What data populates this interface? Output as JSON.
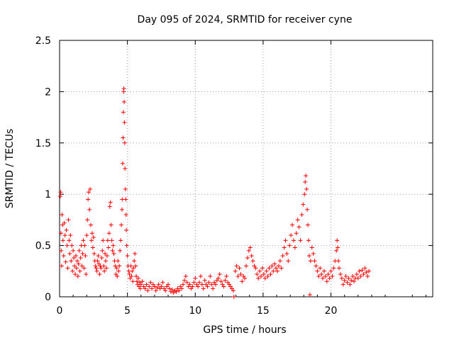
{
  "chart_data": {
    "type": "scatter",
    "title": "Day 095 of 2024, SRMTID for receiver cyne",
    "xlabel": "GPS time / hours",
    "ylabel": "SRMTID / TECUs",
    "xlim": [
      0,
      27.5
    ],
    "ylim": [
      0,
      2.5
    ],
    "xticks": [
      0,
      5,
      10,
      15,
      20
    ],
    "xtick_labels": [
      "0",
      "5",
      "10",
      "15",
      "20"
    ],
    "yticks": [
      0,
      0.5,
      1,
      1.5,
      2,
      2.5
    ],
    "ytick_labels": [
      "0",
      "0.5",
      "1",
      "1.5",
      "2",
      "2.5"
    ],
    "grid": true,
    "marker": "+",
    "series": [
      {
        "name": "SRMTID",
        "color": "#ff0000",
        "points": [
          [
            0.05,
            0.98
          ],
          [
            0.08,
            1.02
          ],
          [
            0.1,
            0.62
          ],
          [
            0.12,
            0.45
          ],
          [
            0.15,
            0.3
          ],
          [
            0.18,
            0.8
          ],
          [
            0.22,
            0.7
          ],
          [
            0.25,
            0.55
          ],
          [
            0.3,
            0.4
          ],
          [
            0.35,
            0.72
          ],
          [
            0.4,
            0.6
          ],
          [
            0.45,
            0.34
          ],
          [
            0.5,
            0.65
          ],
          [
            0.55,
            0.5
          ],
          [
            0.6,
            0.28
          ],
          [
            0.65,
            0.75
          ],
          [
            0.7,
            0.55
          ],
          [
            0.75,
            0.42
          ],
          [
            0.8,
            0.6
          ],
          [
            0.85,
            0.35
          ],
          [
            0.9,
            0.5
          ],
          [
            0.95,
            0.25
          ],
          [
            1.0,
            0.45
          ],
          [
            1.05,
            0.38
          ],
          [
            1.1,
            0.3
          ],
          [
            1.15,
            0.22
          ],
          [
            1.2,
            0.4
          ],
          [
            1.25,
            0.28
          ],
          [
            1.3,
            0.35
          ],
          [
            1.35,
            0.2
          ],
          [
            1.4,
            0.32
          ],
          [
            1.45,
            0.45
          ],
          [
            1.5,
            0.25
          ],
          [
            1.55,
            0.38
          ],
          [
            1.6,
            0.5
          ],
          [
            1.65,
            0.3
          ],
          [
            1.7,
            0.42
          ],
          [
            1.75,
            0.55
          ],
          [
            1.8,
            0.28
          ],
          [
            1.85,
            0.5
          ],
          [
            1.9,
            0.4
          ],
          [
            1.95,
            0.22
          ],
          [
            2.0,
            0.6
          ],
          [
            2.05,
            0.75
          ],
          [
            2.1,
            0.95
          ],
          [
            2.15,
            1.02
          ],
          [
            2.2,
            0.85
          ],
          [
            2.25,
            1.05
          ],
          [
            2.3,
            0.7
          ],
          [
            2.35,
            0.55
          ],
          [
            2.4,
            0.62
          ],
          [
            2.45,
            0.48
          ],
          [
            2.5,
            0.58
          ],
          [
            2.55,
            0.42
          ],
          [
            2.6,
            0.35
          ],
          [
            2.65,
            0.3
          ],
          [
            2.7,
            0.28
          ],
          [
            2.75,
            0.25
          ],
          [
            2.8,
            0.35
          ],
          [
            2.85,
            0.4
          ],
          [
            2.9,
            0.32
          ],
          [
            2.95,
            0.22
          ],
          [
            3.0,
            0.3
          ],
          [
            3.05,
            0.28
          ],
          [
            3.1,
            0.38
          ],
          [
            3.15,
            0.45
          ],
          [
            3.2,
            0.55
          ],
          [
            3.25,
            0.3
          ],
          [
            3.3,
            0.25
          ],
          [
            3.35,
            0.42
          ],
          [
            3.4,
            0.35
          ],
          [
            3.45,
            0.28
          ],
          [
            3.5,
            0.4
          ],
          [
            3.55,
            0.55
          ],
          [
            3.6,
            0.48
          ],
          [
            3.65,
            0.62
          ],
          [
            3.7,
            0.88
          ],
          [
            3.75,
            0.92
          ],
          [
            3.8,
            0.7
          ],
          [
            3.85,
            0.55
          ],
          [
            3.9,
            0.45
          ],
          [
            3.95,
            0.5
          ],
          [
            4.0,
            0.42
          ],
          [
            4.05,
            0.35
          ],
          [
            4.1,
            0.3
          ],
          [
            4.15,
            0.22
          ],
          [
            4.2,
            0.28
          ],
          [
            4.25,
            0.2
          ],
          [
            4.3,
            0.35
          ],
          [
            4.35,
            0.25
          ],
          [
            4.4,
            0.3
          ],
          [
            4.45,
            0.45
          ],
          [
            4.5,
            0.55
          ],
          [
            4.55,
            0.7
          ],
          [
            4.6,
            0.85
          ],
          [
            4.62,
            0.95
          ],
          [
            4.65,
            1.3
          ],
          [
            4.68,
            1.55
          ],
          [
            4.7,
            1.8
          ],
          [
            4.72,
            2.0
          ],
          [
            4.74,
            2.03
          ],
          [
            4.76,
            1.9
          ],
          [
            4.78,
            1.7
          ],
          [
            4.8,
            1.5
          ],
          [
            4.82,
            1.25
          ],
          [
            4.85,
            1.05
          ],
          [
            4.88,
            0.95
          ],
          [
            4.9,
            0.8
          ],
          [
            4.92,
            0.65
          ],
          [
            4.95,
            0.5
          ],
          [
            5.0,
            0.4
          ],
          [
            5.05,
            0.3
          ],
          [
            5.1,
            0.25
          ],
          [
            5.15,
            0.22
          ],
          [
            5.2,
            0.18
          ],
          [
            5.25,
            0.3
          ],
          [
            5.3,
            0.2
          ],
          [
            5.35,
            0.25
          ],
          [
            5.4,
            0.15
          ],
          [
            5.45,
            0.28
          ],
          [
            5.5,
            0.35
          ],
          [
            5.55,
            0.42
          ],
          [
            5.6,
            0.3
          ],
          [
            5.65,
            0.2
          ],
          [
            5.7,
            0.15
          ],
          [
            5.75,
            0.12
          ],
          [
            5.8,
            0.18
          ],
          [
            5.85,
            0.1
          ],
          [
            5.9,
            0.14
          ],
          [
            5.95,
            0.08
          ],
          [
            6.0,
            0.12
          ],
          [
            6.1,
            0.15
          ],
          [
            6.2,
            0.1
          ],
          [
            6.3,
            0.08
          ],
          [
            6.4,
            0.12
          ],
          [
            6.5,
            0.06
          ],
          [
            6.6,
            0.1
          ],
          [
            6.7,
            0.14
          ],
          [
            6.8,
            0.08
          ],
          [
            6.9,
            0.12
          ],
          [
            7.0,
            0.1
          ],
          [
            7.1,
            0.06
          ],
          [
            7.2,
            0.09
          ],
          [
            7.3,
            0.12
          ],
          [
            7.4,
            0.08
          ],
          [
            7.5,
            0.1
          ],
          [
            7.6,
            0.14
          ],
          [
            7.7,
            0.08
          ],
          [
            7.8,
            0.06
          ],
          [
            7.9,
            0.1
          ],
          [
            8.0,
            0.12
          ],
          [
            8.1,
            0.08
          ],
          [
            8.2,
            0.05
          ],
          [
            8.3,
            0.07
          ],
          [
            8.4,
            0.04
          ],
          [
            8.5,
            0.06
          ],
          [
            8.6,
            0.05
          ],
          [
            8.7,
            0.08
          ],
          [
            8.8,
            0.06
          ],
          [
            8.9,
            0.1
          ],
          [
            9.0,
            0.08
          ],
          [
            9.1,
            0.12
          ],
          [
            9.2,
            0.16
          ],
          [
            9.3,
            0.2
          ],
          [
            9.4,
            0.14
          ],
          [
            9.5,
            0.1
          ],
          [
            9.6,
            0.12
          ],
          [
            9.7,
            0.08
          ],
          [
            9.8,
            0.1
          ],
          [
            9.9,
            0.14
          ],
          [
            10.0,
            0.18
          ],
          [
            10.1,
            0.12
          ],
          [
            10.2,
            0.1
          ],
          [
            10.3,
            0.14
          ],
          [
            10.4,
            0.2
          ],
          [
            10.5,
            0.12
          ],
          [
            10.6,
            0.08
          ],
          [
            10.7,
            0.16
          ],
          [
            10.8,
            0.12
          ],
          [
            10.9,
            0.1
          ],
          [
            11.0,
            0.14
          ],
          [
            11.1,
            0.2
          ],
          [
            11.2,
            0.12
          ],
          [
            11.3,
            0.08
          ],
          [
            11.4,
            0.14
          ],
          [
            11.5,
            0.12
          ],
          [
            11.6,
            0.16
          ],
          [
            11.7,
            0.18
          ],
          [
            11.8,
            0.22
          ],
          [
            11.9,
            0.15
          ],
          [
            12.0,
            0.12
          ],
          [
            12.1,
            0.1
          ],
          [
            12.2,
            0.16
          ],
          [
            12.3,
            0.2
          ],
          [
            12.4,
            0.14
          ],
          [
            12.5,
            0.12
          ],
          [
            12.6,
            0.1
          ],
          [
            12.7,
            0.08
          ],
          [
            12.8,
            0.06
          ],
          [
            12.85,
            0.0
          ],
          [
            12.95,
            0.25
          ],
          [
            13.05,
            0.3
          ],
          [
            13.15,
            0.2
          ],
          [
            13.25,
            0.28
          ],
          [
            13.35,
            0.22
          ],
          [
            13.45,
            0.15
          ],
          [
            13.55,
            0.2
          ],
          [
            13.65,
            0.18
          ],
          [
            13.75,
            0.3
          ],
          [
            13.85,
            0.38
          ],
          [
            13.95,
            0.45
          ],
          [
            14.05,
            0.48
          ],
          [
            14.15,
            0.4
          ],
          [
            14.25,
            0.35
          ],
          [
            14.35,
            0.3
          ],
          [
            14.45,
            0.28
          ],
          [
            14.55,
            0.22
          ],
          [
            14.65,
            0.18
          ],
          [
            14.75,
            0.25
          ],
          [
            14.85,
            0.2
          ],
          [
            14.95,
            0.28
          ],
          [
            15.05,
            0.22
          ],
          [
            15.15,
            0.18
          ],
          [
            15.25,
            0.25
          ],
          [
            15.35,
            0.2
          ],
          [
            15.45,
            0.28
          ],
          [
            15.55,
            0.22
          ],
          [
            15.65,
            0.3
          ],
          [
            15.75,
            0.25
          ],
          [
            15.85,
            0.32
          ],
          [
            15.95,
            0.28
          ],
          [
            16.05,
            0.25
          ],
          [
            16.15,
            0.3
          ],
          [
            16.25,
            0.35
          ],
          [
            16.35,
            0.28
          ],
          [
            16.45,
            0.4
          ],
          [
            16.55,
            0.48
          ],
          [
            16.65,
            0.55
          ],
          [
            16.75,
            0.42
          ],
          [
            16.85,
            0.35
          ],
          [
            16.95,
            0.5
          ],
          [
            17.05,
            0.6
          ],
          [
            17.15,
            0.7
          ],
          [
            17.25,
            0.55
          ],
          [
            17.35,
            0.48
          ],
          [
            17.45,
            0.62
          ],
          [
            17.55,
            0.75
          ],
          [
            17.65,
            0.68
          ],
          [
            17.75,
            0.55
          ],
          [
            17.85,
            0.8
          ],
          [
            17.95,
            0.9
          ],
          [
            18.05,
            1.0
          ],
          [
            18.1,
            1.12
          ],
          [
            18.15,
            1.18
          ],
          [
            18.2,
            1.05
          ],
          [
            18.25,
            0.85
          ],
          [
            18.3,
            0.7
          ],
          [
            18.35,
            0.55
          ],
          [
            18.4,
            0.4
          ],
          [
            18.45,
            0.02
          ],
          [
            18.5,
            0.35
          ],
          [
            18.6,
            0.48
          ],
          [
            18.7,
            0.42
          ],
          [
            18.8,
            0.35
          ],
          [
            18.9,
            0.3
          ],
          [
            19.0,
            0.25
          ],
          [
            19.1,
            0.2
          ],
          [
            19.2,
            0.28
          ],
          [
            19.3,
            0.22
          ],
          [
            19.4,
            0.18
          ],
          [
            19.5,
            0.25
          ],
          [
            19.6,
            0.2
          ],
          [
            19.7,
            0.15
          ],
          [
            19.8,
            0.22
          ],
          [
            19.9,
            0.18
          ],
          [
            20.0,
            0.25
          ],
          [
            20.1,
            0.2
          ],
          [
            20.2,
            0.28
          ],
          [
            20.3,
            0.35
          ],
          [
            20.4,
            0.45
          ],
          [
            20.45,
            0.55
          ],
          [
            20.5,
            0.48
          ],
          [
            20.55,
            0.35
          ],
          [
            20.6,
            0.28
          ],
          [
            20.7,
            0.22
          ],
          [
            20.8,
            0.18
          ],
          [
            20.9,
            0.12
          ],
          [
            21.0,
            0.16
          ],
          [
            21.1,
            0.2
          ],
          [
            21.2,
            0.14
          ],
          [
            21.3,
            0.18
          ],
          [
            21.4,
            0.12
          ],
          [
            21.5,
            0.16
          ],
          [
            21.6,
            0.2
          ],
          [
            21.7,
            0.15
          ],
          [
            21.8,
            0.18
          ],
          [
            21.9,
            0.22
          ],
          [
            22.0,
            0.18
          ],
          [
            22.1,
            0.25
          ],
          [
            22.2,
            0.2
          ],
          [
            22.3,
            0.26
          ],
          [
            22.4,
            0.22
          ],
          [
            22.5,
            0.28
          ],
          [
            22.6,
            0.24
          ],
          [
            22.7,
            0.2
          ],
          [
            22.8,
            0.25
          ]
        ]
      }
    ]
  }
}
